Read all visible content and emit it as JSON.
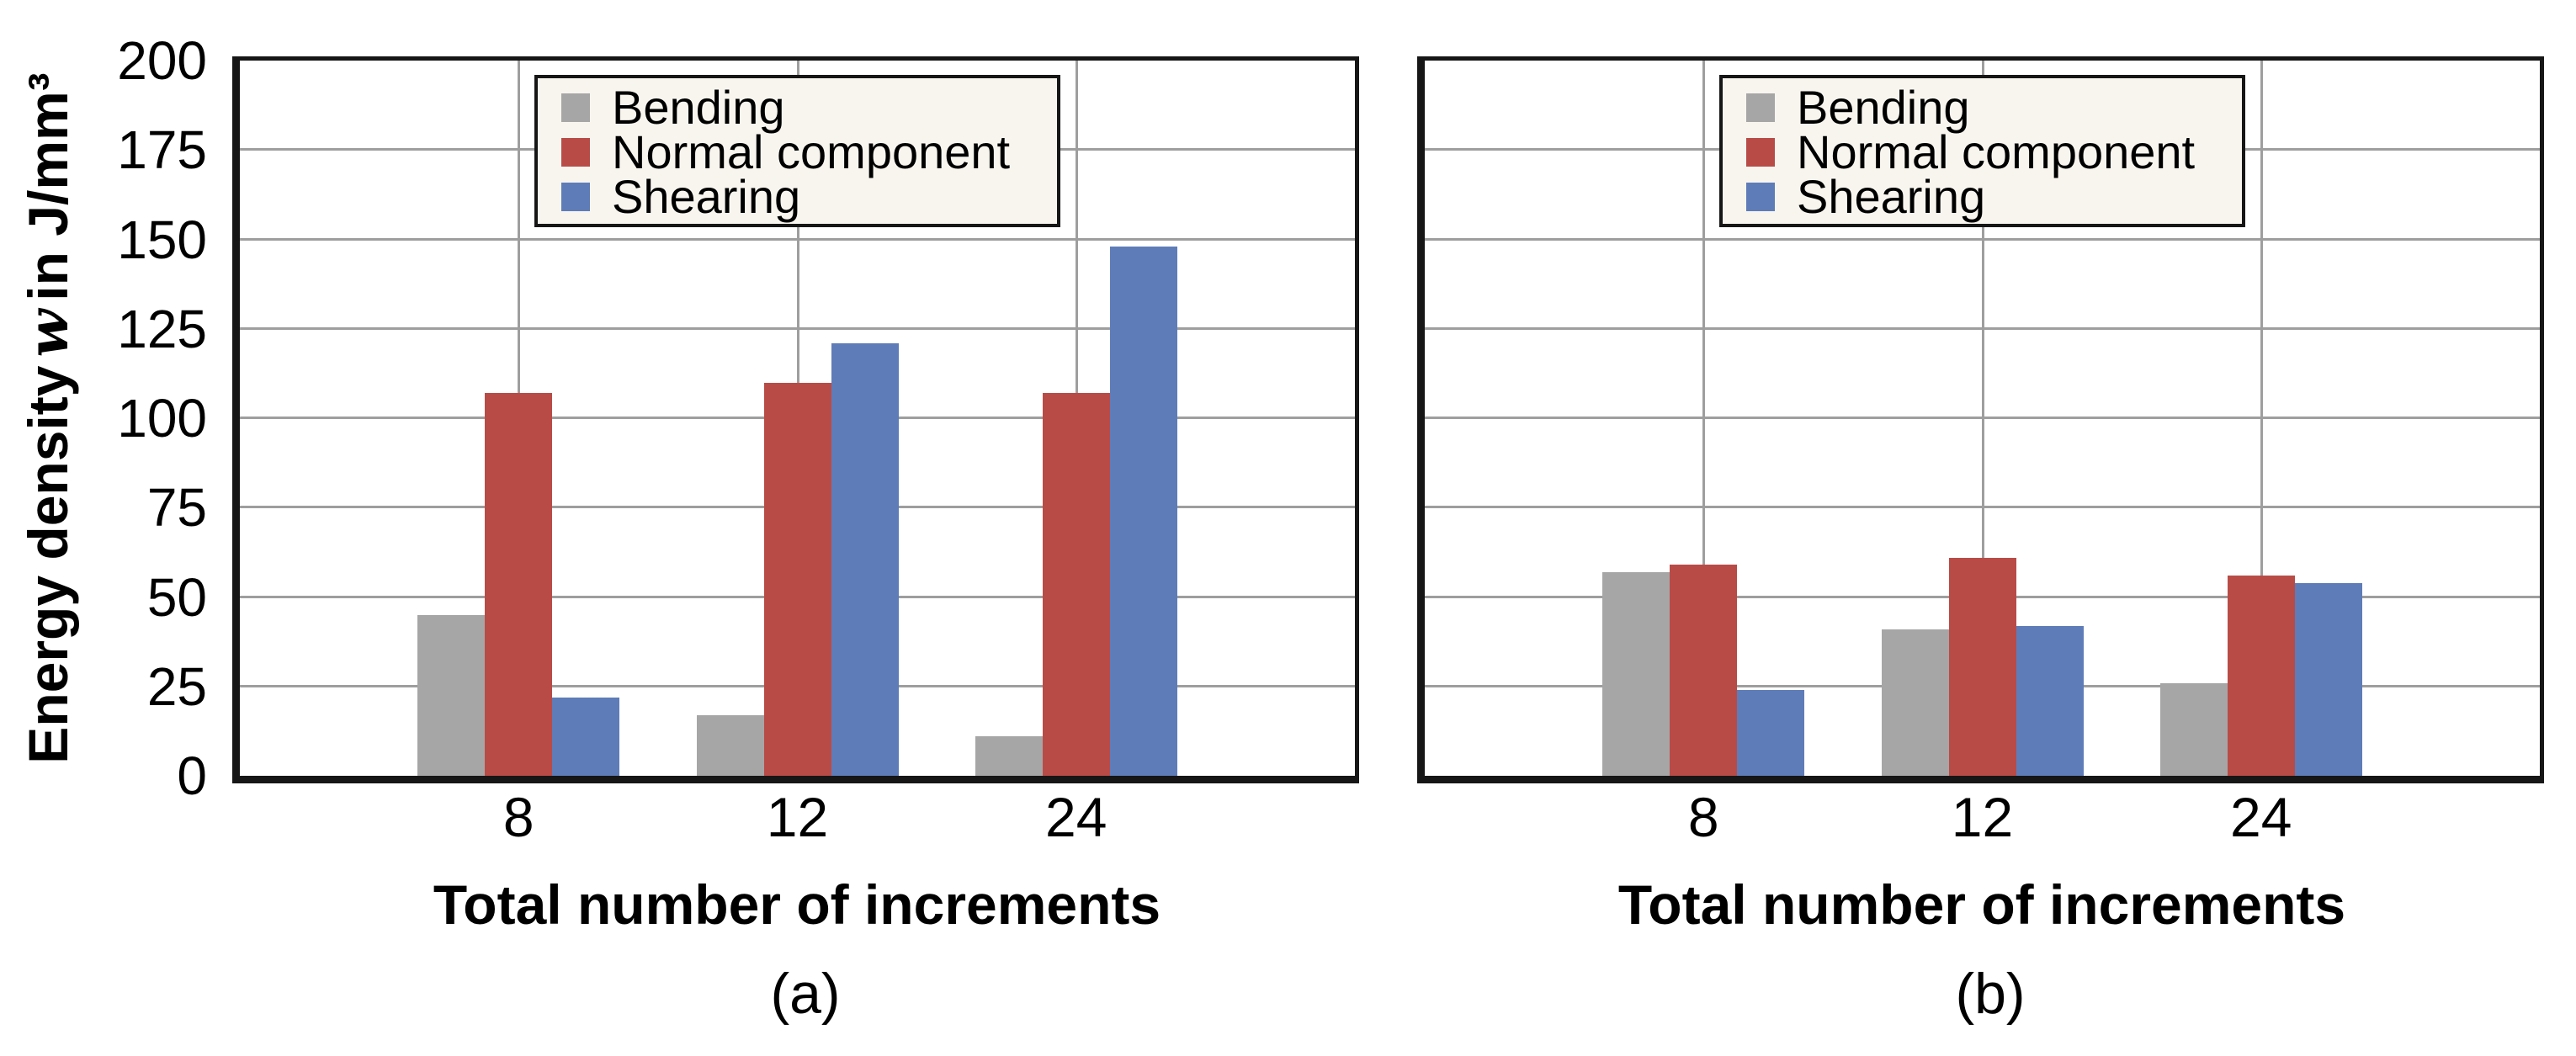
{
  "colors": {
    "bending": "#a6a6a6",
    "normal_component": "#b94b47",
    "shearing": "#5e7cb8",
    "grid": "#9e9e9e",
    "frame": "#161616",
    "legend_background": "#f8f5ef",
    "text": "#000000"
  },
  "y_axis": {
    "title": "Energy density w in J/mm³",
    "title_parts": {
      "prefix": "Energy density",
      "symbol": "w",
      "suffix": "in J/mm³"
    },
    "min": 0,
    "max": 200,
    "tick_step": 25,
    "tick_labels": [
      "0",
      "25",
      "50",
      "75",
      "100",
      "125",
      "150",
      "175",
      "200"
    ]
  },
  "x_axis": {
    "title": "Total number of increments",
    "categories": [
      "8",
      "12",
      "24"
    ]
  },
  "legend": {
    "items": [
      {
        "label": "Bending",
        "color_key": "bending"
      },
      {
        "label": "Normal component",
        "color_key": "normal_component"
      },
      {
        "label": "Shearing",
        "color_key": "shearing"
      }
    ]
  },
  "charts": [
    {
      "caption": "(a)"
    },
    {
      "caption": "(b)"
    }
  ],
  "chart_data": [
    {
      "type": "bar",
      "caption": "(a)",
      "title": "",
      "xlabel": "Total number of increments",
      "ylabel": "Energy density w in J/mm³",
      "ylim": [
        0,
        200
      ],
      "ytick_step": 25,
      "grid": true,
      "legend_position": "inside upper-left",
      "categories": [
        "8",
        "12",
        "24"
      ],
      "series": [
        {
          "name": "Bending",
          "color": "#a6a6a6",
          "values": [
            45,
            17,
            11
          ]
        },
        {
          "name": "Normal component",
          "color": "#b94b47",
          "values": [
            107,
            110,
            107
          ]
        },
        {
          "name": "Shearing",
          "color": "#5e7cb8",
          "values": [
            22,
            121,
            148
          ]
        }
      ]
    },
    {
      "type": "bar",
      "caption": "(b)",
      "title": "",
      "xlabel": "Total number of increments",
      "ylabel": "Energy density w in J/mm³",
      "ylim": [
        0,
        200
      ],
      "ytick_step": 25,
      "grid": true,
      "legend_position": "inside upper-left",
      "categories": [
        "8",
        "12",
        "24"
      ],
      "series": [
        {
          "name": "Bending",
          "color": "#a6a6a6",
          "values": [
            57,
            41,
            26
          ]
        },
        {
          "name": "Normal component",
          "color": "#b94b47",
          "values": [
            59,
            61,
            56
          ]
        },
        {
          "name": "Shearing",
          "color": "#5e7cb8",
          "values": [
            24,
            42,
            54
          ]
        }
      ]
    }
  ]
}
